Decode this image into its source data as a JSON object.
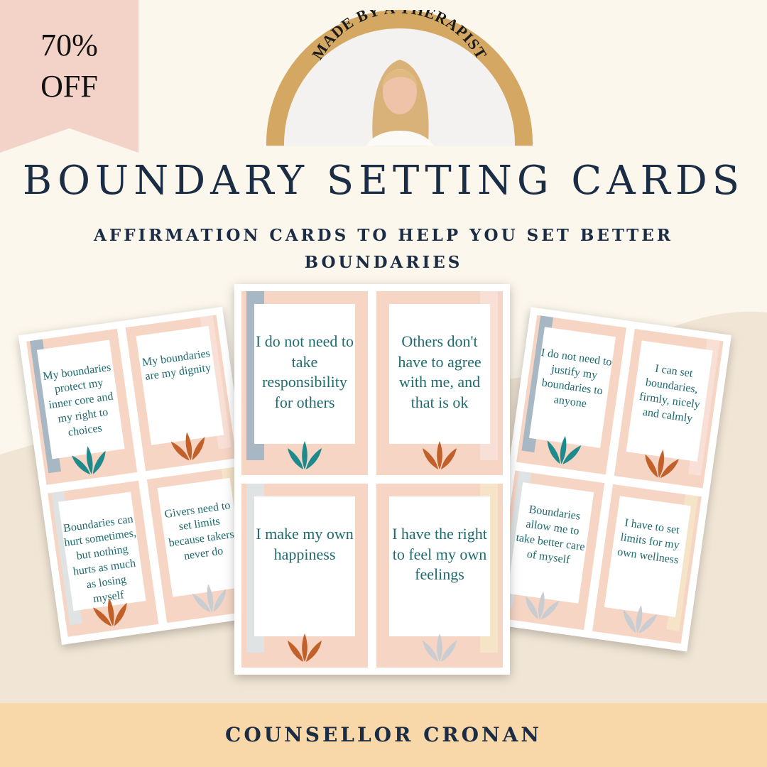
{
  "badge": {
    "line1": "70%",
    "line2": "OFF",
    "color": "#f3d3c8"
  },
  "arch": {
    "text": "MADE BY A THERAPIST",
    "color": "#d4a862"
  },
  "title": "BOUNDARY SETTING CARDS",
  "subtitle": {
    "line1": "AFFIRMATION CARDS TO HELP YOU SET BETTER",
    "line2": "BOUNDARIES"
  },
  "sheets": {
    "left": [
      {
        "text": "My boundaries protect my inner core and my right to choices",
        "strip": "#a7b7c4",
        "leaf": "#1f8a8c"
      },
      {
        "text": "My boundaries are my dignity",
        "strip": "#f8e0d6",
        "leaf": "#c2602a"
      },
      {
        "text": "Boundaries can hurt sometimes, but nothing hurts as much as losing myself",
        "strip": "#dfe3e3",
        "leaf": "#c2602a"
      },
      {
        "text": "Givers need to set limits because takers never do",
        "strip": "#f6e4c8",
        "leaf": "#c9ccd0"
      }
    ],
    "center": [
      {
        "text": "I do not need to take responsibility for others",
        "strip": "#a7b7c4",
        "leaf": "#1f8a8c"
      },
      {
        "text": "Others don't have to agree with me, and that is ok",
        "strip": "#f8e0d6",
        "leaf": "#c2602a"
      },
      {
        "text": "I make my own happiness",
        "strip": "#dfe3e3",
        "leaf": "#c2602a"
      },
      {
        "text": "I have the right to feel my own feelings",
        "strip": "#f6e4c8",
        "leaf": "#c9ccd0"
      }
    ],
    "right": [
      {
        "text": "I do not need to justify my boundaries to anyone",
        "strip": "#a7b7c4",
        "leaf": "#1f8a8c"
      },
      {
        "text": "I  can set boundaries, firmly, nicely and calmly",
        "strip": "#f8e0d6",
        "leaf": "#c2602a"
      },
      {
        "text": "Boundaries allow me to take better care of myself",
        "strip": "#dfe3e3",
        "leaf": "#c9ccd0"
      },
      {
        "text": "I have to set limits for my own wellness",
        "strip": "#f6e4c8",
        "leaf": "#c9ccd0"
      }
    ]
  },
  "footer": "COUNSELLOR CRONAN",
  "colors": {
    "navy": "#1b2c45",
    "teal_text": "#1f6b6e",
    "footer_bg": "#f8d7a8"
  }
}
